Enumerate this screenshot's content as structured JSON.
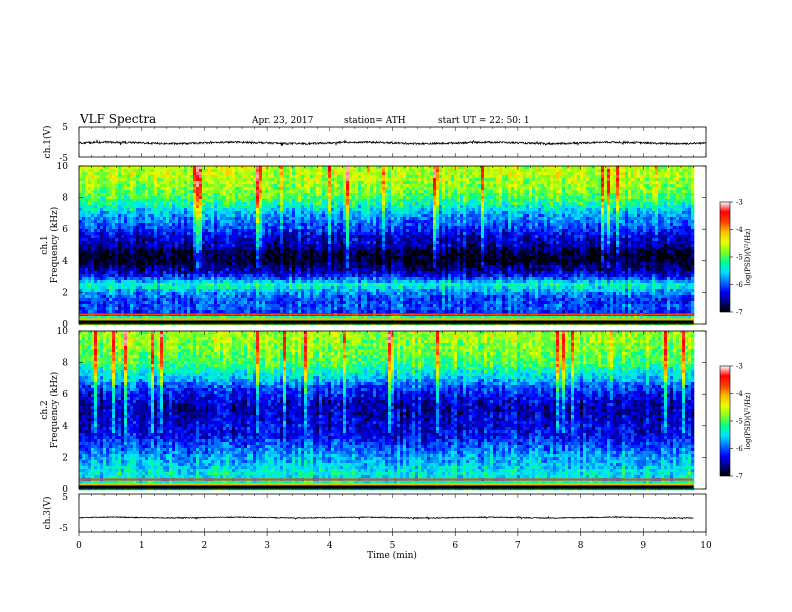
{
  "header": {
    "title": "VLF  Spectra",
    "date": "Apr. 23, 2017",
    "station": "station= ATH",
    "start": "start  UT  =    22: 50: 1"
  },
  "colors": {
    "colormap": [
      "#000000",
      "#00008b",
      "#0000ff",
      "#0080ff",
      "#00ffff",
      "#00ff80",
      "#80ff00",
      "#ffff00",
      "#ff8000",
      "#ff0000",
      "#ffc0c0",
      "#ffffff"
    ],
    "trace": "#000000"
  },
  "chart_data": [
    {
      "type": "line",
      "panel": "ch1-voltage",
      "ylabel": "ch.1(V)",
      "yticks": [
        "5",
        "-5"
      ],
      "ylim": [
        -5,
        5
      ],
      "xlim": [
        0,
        10
      ],
      "baseline": -0.3,
      "noise_amplitude": 0.6
    },
    {
      "type": "heatmap",
      "panel": "ch1-spectrogram",
      "ylabel": [
        "ch.1",
        "Frequency  (kHz)"
      ],
      "yticks": [
        "0",
        "2",
        "4",
        "6",
        "8",
        "10"
      ],
      "ylim": [
        0,
        10
      ],
      "xlim": [
        0,
        9.8
      ],
      "colorbar": {
        "label": "log(PSD)(V²/Hz)",
        "ticks": [
          "-3",
          "-4",
          "-5",
          "-6",
          "-7"
        ],
        "range": [
          -7,
          -3
        ]
      },
      "profile": {
        "freq_khz": [
          0.0,
          0.3,
          0.6,
          1.0,
          1.5,
          2.0,
          2.5,
          3.0,
          3.5,
          4.0,
          4.5,
          5.0,
          5.5,
          6.0,
          6.5,
          7.0,
          7.5,
          8.0,
          8.5,
          9.0,
          9.5,
          10.0
        ],
        "log_psd": [
          -4.8,
          -4.6,
          -6.2,
          -6.0,
          -6.1,
          -5.8,
          -5.3,
          -6.2,
          -6.6,
          -6.9,
          -6.9,
          -6.5,
          -6.4,
          -6.1,
          -5.9,
          -5.7,
          -5.3,
          -5.0,
          -4.8,
          -4.7,
          -4.6,
          -4.6
        ]
      }
    },
    {
      "type": "heatmap",
      "panel": "ch2-spectrogram",
      "ylabel": [
        "ch.2",
        "Frequency  (kHz)"
      ],
      "yticks": [
        "0",
        "2",
        "4",
        "6",
        "8",
        "10"
      ],
      "ylim": [
        0,
        10
      ],
      "xlim": [
        0,
        9.8
      ],
      "colorbar": {
        "label": "log(PSD)(V²/Hz)",
        "ticks": [
          "-3",
          "-4",
          "-5",
          "-6",
          "-7"
        ],
        "range": [
          -7,
          -3
        ]
      },
      "profile": {
        "freq_khz": [
          0.0,
          0.3,
          0.6,
          1.0,
          1.5,
          2.0,
          2.5,
          3.0,
          3.5,
          4.0,
          4.5,
          5.0,
          5.5,
          6.0,
          6.5,
          7.0,
          7.5,
          8.0,
          8.5,
          9.0,
          9.5,
          10.0
        ],
        "log_psd": [
          -5.2,
          -5.1,
          -5.5,
          -5.4,
          -5.6,
          -5.7,
          -5.9,
          -6.1,
          -6.3,
          -6.3,
          -6.4,
          -6.5,
          -6.4,
          -6.2,
          -6.0,
          -5.6,
          -5.3,
          -5.0,
          -4.9,
          -4.8,
          -4.7,
          -4.7
        ]
      }
    },
    {
      "type": "line",
      "panel": "ch3-voltage",
      "ylabel": "ch.3(V)",
      "yticks": [
        "5",
        "-5"
      ],
      "ylim": [
        -5,
        5
      ],
      "xlim": [
        0,
        9.8
      ],
      "baseline": -1.2,
      "noise_amplitude": 0.25
    }
  ],
  "xaxis": {
    "label": "Time  (min)",
    "ticks": [
      "0",
      "1",
      "2",
      "3",
      "4",
      "5",
      "6",
      "7",
      "8",
      "9",
      "10"
    ],
    "xlim": [
      0,
      10
    ]
  }
}
